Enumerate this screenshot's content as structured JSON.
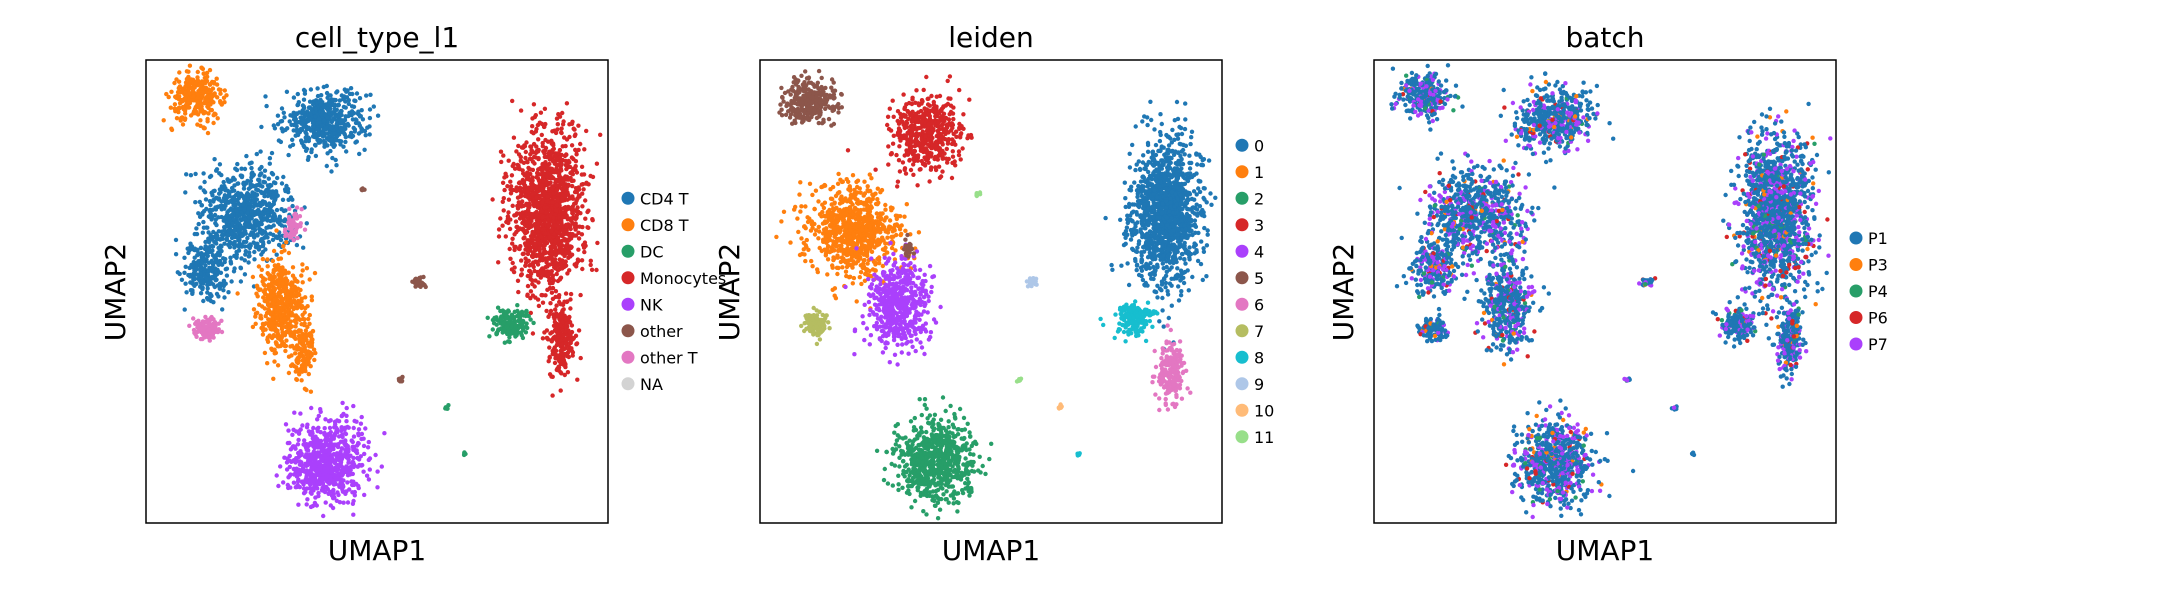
{
  "chart_data": [
    {
      "type": "scatter",
      "title": "cell_type_l1",
      "xlabel": "UMAP1",
      "ylabel": "UMAP2",
      "ticks": false,
      "grid": false,
      "legend_position": "right",
      "legend": [
        {
          "label": "CD4 T",
          "color": "#1f77b4"
        },
        {
          "label": "CD8 T",
          "color": "#ff7f0e"
        },
        {
          "label": "DC",
          "color": "#279e68"
        },
        {
          "label": "Monocytes",
          "color": "#d62728"
        },
        {
          "label": "NK",
          "color": "#aa40fc"
        },
        {
          "label": "other",
          "color": "#8c564b"
        },
        {
          "label": "other T",
          "color": "#e377c2"
        },
        {
          "label": "NA",
          "color": "#d3d3d3"
        }
      ],
      "clusters": [
        {
          "label": "CD8 T",
          "center": [
            0.11,
            0.92
          ],
          "spread": [
            0.05,
            0.045
          ],
          "n": 300
        },
        {
          "label": "CD4 T",
          "center": [
            0.39,
            0.87
          ],
          "spread": [
            0.08,
            0.06
          ],
          "n": 500
        },
        {
          "label": "CD4 T",
          "center": [
            0.22,
            0.67
          ],
          "spread": [
            0.09,
            0.09
          ],
          "n": 700
        },
        {
          "label": "CD4 T",
          "center": [
            0.13,
            0.55
          ],
          "spread": [
            0.045,
            0.06
          ],
          "n": 250
        },
        {
          "label": "CD8 T",
          "center": [
            0.29,
            0.47
          ],
          "spread": [
            0.045,
            0.09
          ],
          "n": 450
        },
        {
          "label": "CD8 T",
          "center": [
            0.34,
            0.37
          ],
          "spread": [
            0.02,
            0.06
          ],
          "n": 150
        },
        {
          "label": "other T",
          "center": [
            0.13,
            0.42
          ],
          "spread": [
            0.025,
            0.02
          ],
          "n": 120
        },
        {
          "label": "other T",
          "center": [
            0.32,
            0.64
          ],
          "spread": [
            0.015,
            0.03
          ],
          "n": 60
        },
        {
          "label": "NK",
          "center": [
            0.39,
            0.13
          ],
          "spread": [
            0.075,
            0.08
          ],
          "n": 700
        },
        {
          "label": "Monocytes",
          "center": [
            0.87,
            0.67
          ],
          "spread": [
            0.07,
            0.15
          ],
          "n": 1400
        },
        {
          "label": "Monocytes",
          "center": [
            0.9,
            0.4
          ],
          "spread": [
            0.025,
            0.07
          ],
          "n": 250
        },
        {
          "label": "DC",
          "center": [
            0.79,
            0.43
          ],
          "spread": [
            0.035,
            0.03
          ],
          "n": 180
        },
        {
          "label": "other",
          "center": [
            0.59,
            0.52
          ],
          "spread": [
            0.012,
            0.008
          ],
          "n": 30
        },
        {
          "label": "other",
          "center": [
            0.47,
            0.72
          ],
          "spread": [
            0.005,
            0.005
          ],
          "n": 8
        },
        {
          "label": "other",
          "center": [
            0.55,
            0.31
          ],
          "spread": [
            0.005,
            0.005
          ],
          "n": 8
        },
        {
          "label": "DC",
          "center": [
            0.65,
            0.25
          ],
          "spread": [
            0.005,
            0.005
          ],
          "n": 8
        },
        {
          "label": "DC",
          "center": [
            0.69,
            0.15
          ],
          "spread": [
            0.003,
            0.003
          ],
          "n": 4
        }
      ]
    },
    {
      "type": "scatter",
      "title": "leiden",
      "xlabel": "UMAP1",
      "ylabel": "UMAP2",
      "ticks": false,
      "grid": false,
      "legend_position": "right",
      "legend": [
        {
          "label": "0",
          "color": "#1f77b4"
        },
        {
          "label": "1",
          "color": "#ff7f0e"
        },
        {
          "label": "2",
          "color": "#279e68"
        },
        {
          "label": "3",
          "color": "#d62728"
        },
        {
          "label": "4",
          "color": "#aa40fc"
        },
        {
          "label": "5",
          "color": "#8c564b"
        },
        {
          "label": "6",
          "color": "#e377c2"
        },
        {
          "label": "7",
          "color": "#b5bd61"
        },
        {
          "label": "8",
          "color": "#17becf"
        },
        {
          "label": "9",
          "color": "#aec7e8"
        },
        {
          "label": "10",
          "color": "#ffbb78"
        },
        {
          "label": "11",
          "color": "#98df8a"
        }
      ],
      "clusters": [
        {
          "label": "5",
          "center": [
            0.11,
            0.91
          ],
          "spread": [
            0.05,
            0.045
          ],
          "n": 300
        },
        {
          "label": "3",
          "center": [
            0.36,
            0.84
          ],
          "spread": [
            0.07,
            0.07
          ],
          "n": 500
        },
        {
          "label": "1",
          "center": [
            0.2,
            0.63
          ],
          "spread": [
            0.09,
            0.09
          ],
          "n": 800
        },
        {
          "label": "4",
          "center": [
            0.3,
            0.47
          ],
          "spread": [
            0.06,
            0.09
          ],
          "n": 550
        },
        {
          "label": "7",
          "center": [
            0.12,
            0.43
          ],
          "spread": [
            0.025,
            0.025
          ],
          "n": 120
        },
        {
          "label": "5",
          "center": [
            0.32,
            0.59
          ],
          "spread": [
            0.01,
            0.02
          ],
          "n": 25
        },
        {
          "label": "2",
          "center": [
            0.38,
            0.13
          ],
          "spread": [
            0.075,
            0.08
          ],
          "n": 700
        },
        {
          "label": "0",
          "center": [
            0.88,
            0.67
          ],
          "spread": [
            0.07,
            0.14
          ],
          "n": 1300
        },
        {
          "label": "8",
          "center": [
            0.81,
            0.44
          ],
          "spread": [
            0.035,
            0.03
          ],
          "n": 180
        },
        {
          "label": "6",
          "center": [
            0.89,
            0.33
          ],
          "spread": [
            0.025,
            0.06
          ],
          "n": 220
        },
        {
          "label": "9",
          "center": [
            0.59,
            0.52
          ],
          "spread": [
            0.012,
            0.008
          ],
          "n": 30
        },
        {
          "label": "11",
          "center": [
            0.47,
            0.71
          ],
          "spread": [
            0.005,
            0.005
          ],
          "n": 8
        },
        {
          "label": "11",
          "center": [
            0.56,
            0.31
          ],
          "spread": [
            0.005,
            0.005
          ],
          "n": 8
        },
        {
          "label": "10",
          "center": [
            0.65,
            0.25
          ],
          "spread": [
            0.005,
            0.005
          ],
          "n": 8
        },
        {
          "label": "8",
          "center": [
            0.69,
            0.15
          ],
          "spread": [
            0.003,
            0.003
          ],
          "n": 4
        }
      ]
    },
    {
      "type": "scatter",
      "title": "batch",
      "xlabel": "UMAP1",
      "ylabel": "UMAP2",
      "ticks": false,
      "grid": false,
      "legend_position": "right",
      "legend": [
        {
          "label": "P1",
          "color": "#1f77b4"
        },
        {
          "label": "P3",
          "color": "#ff7f0e"
        },
        {
          "label": "P4",
          "color": "#279e68"
        },
        {
          "label": "P6",
          "color": "#d62728"
        },
        {
          "label": "P7",
          "color": "#aa40fc"
        }
      ],
      "mixture": {
        "P1": 0.68,
        "P7": 0.22,
        "P6": 0.04,
        "P3": 0.03,
        "P4": 0.03
      },
      "clusters": [
        {
          "center": [
            0.11,
            0.92
          ],
          "spread": [
            0.05,
            0.045
          ],
          "n": 300
        },
        {
          "center": [
            0.39,
            0.87
          ],
          "spread": [
            0.08,
            0.06
          ],
          "n": 500
        },
        {
          "center": [
            0.22,
            0.67
          ],
          "spread": [
            0.09,
            0.09
          ],
          "n": 700
        },
        {
          "center": [
            0.13,
            0.55
          ],
          "spread": [
            0.045,
            0.06
          ],
          "n": 250
        },
        {
          "center": [
            0.29,
            0.47
          ],
          "spread": [
            0.045,
            0.09
          ],
          "n": 450
        },
        {
          "center": [
            0.13,
            0.42
          ],
          "spread": [
            0.025,
            0.02
          ],
          "n": 120
        },
        {
          "center": [
            0.39,
            0.13
          ],
          "spread": [
            0.075,
            0.08
          ],
          "n": 700
        },
        {
          "center": [
            0.87,
            0.67
          ],
          "spread": [
            0.07,
            0.15
          ],
          "n": 1400
        },
        {
          "center": [
            0.9,
            0.4
          ],
          "spread": [
            0.025,
            0.07
          ],
          "n": 250
        },
        {
          "center": [
            0.79,
            0.43
          ],
          "spread": [
            0.035,
            0.03
          ],
          "n": 180
        },
        {
          "center": [
            0.59,
            0.52
          ],
          "spread": [
            0.012,
            0.008
          ],
          "n": 30
        },
        {
          "center": [
            0.55,
            0.31
          ],
          "spread": [
            0.005,
            0.005
          ],
          "n": 8
        },
        {
          "center": [
            0.65,
            0.25
          ],
          "spread": [
            0.005,
            0.005
          ],
          "n": 8
        },
        {
          "center": [
            0.69,
            0.15
          ],
          "spread": [
            0.003,
            0.003
          ],
          "n": 4
        }
      ]
    }
  ]
}
